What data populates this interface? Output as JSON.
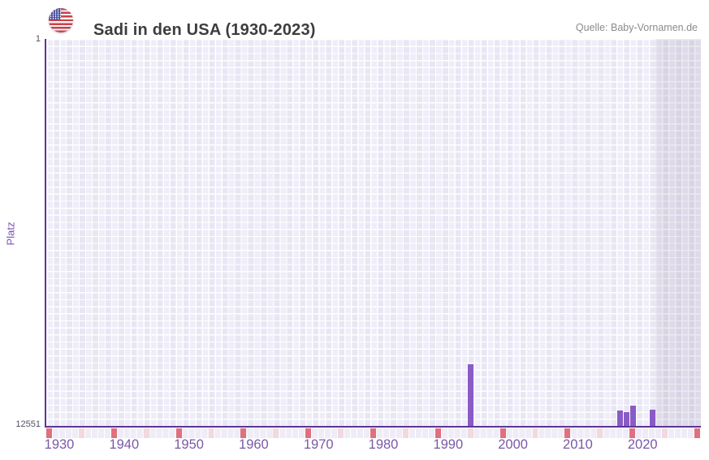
{
  "header": {
    "title": "Sadi in den USA (1930-2023)",
    "flag_icon": "us-flag-icon",
    "source": "Quelle: Baby-Vornamen.de"
  },
  "chart_data": {
    "type": "bar",
    "title": "Sadi in den USA (1930-2023)",
    "xlabel": "",
    "ylabel": "Platz",
    "grid": true,
    "legend": false,
    "y_axis": {
      "top_label": "1",
      "bottom_label": "12551",
      "min": 1,
      "max": 12551,
      "inverted": true,
      "note": "rank 1 at top, rank 12551 at bottom axis"
    },
    "x_axis": {
      "grid_start": 1930,
      "grid_end": 2030,
      "data_start": 1930,
      "data_end": 2023,
      "tick_years": [
        1930,
        1940,
        1950,
        1960,
        1970,
        1980,
        1990,
        2000,
        2010,
        2020
      ],
      "decade_marker_years": [
        1930,
        1940,
        1950,
        1960,
        1970,
        1980,
        1990,
        2000,
        2010,
        2020,
        2030
      ],
      "half_decade_marker_years": [
        1935,
        1945,
        1955,
        1965,
        1975,
        1985,
        1995,
        2005,
        2015,
        2025
      ]
    },
    "series": [
      {
        "name": "Platz",
        "points": [
          {
            "year": 1995,
            "platz": 10550
          },
          {
            "year": 2018,
            "platz": 12050
          },
          {
            "year": 2019,
            "platz": 12100
          },
          {
            "year": 2020,
            "platz": 11900
          },
          {
            "year": 2023,
            "platz": 12020
          }
        ]
      }
    ],
    "colors": {
      "bar": "#8A5BC7",
      "axis": "#5C3597",
      "decade_marker": "#E0707E",
      "half_decade_marker": "#F2D8DF",
      "tick_label": "#7A58A9",
      "future_shade": "rgba(105,96,136,0.13)"
    }
  }
}
